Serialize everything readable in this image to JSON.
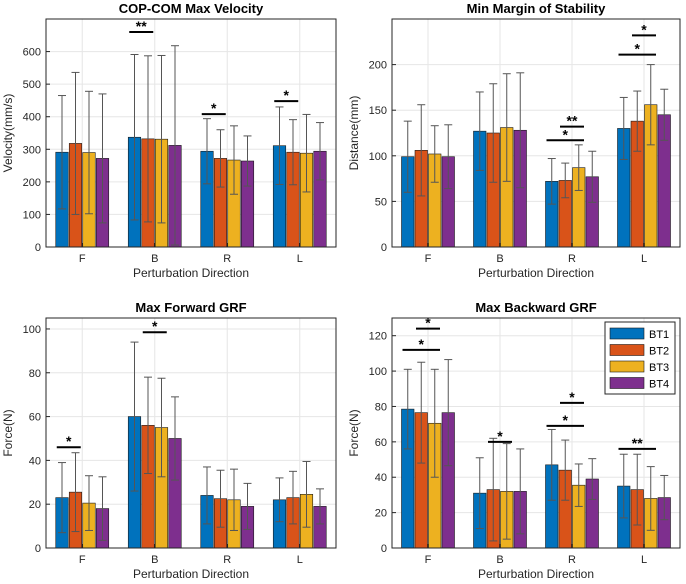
{
  "figure": "Perturbation response comparison across BT1-BT4",
  "chart_data": [
    {
      "type": "bar",
      "title": "COP-COM Max Velocity",
      "xlabel": "Perturbation Direction",
      "ylabel": "Velocity(mm/s)",
      "categories": [
        "F",
        "B",
        "R",
        "L"
      ],
      "ylim": [
        0,
        700
      ],
      "yticks": [
        0,
        100,
        200,
        300,
        400,
        500,
        600
      ],
      "grid": true,
      "series": [
        {
          "name": "BT1",
          "values": [
            291,
            337,
            294,
            311
          ],
          "error": [
            174,
            254,
            100,
            119
          ]
        },
        {
          "name": "BT2",
          "values": [
            318,
            332,
            272,
            291
          ],
          "error": [
            218,
            255,
            88,
            100
          ]
        },
        {
          "name": "BT3",
          "values": [
            290,
            331,
            267,
            288
          ],
          "error": [
            188,
            257,
            105,
            119
          ]
        },
        {
          "name": "BT4",
          "values": [
            272,
            312,
            264,
            294
          ],
          "error": [
            198,
            306,
            77,
            88
          ]
        }
      ],
      "annotations": [
        {
          "text": "**",
          "group": "B",
          "from": "BT1",
          "to": "BT2",
          "y": 660
        },
        {
          "text": "*",
          "group": "R",
          "from": "BT1",
          "to": "BT2",
          "y": 408
        },
        {
          "text": "*",
          "group": "L",
          "from": "BT1",
          "to": "BT2",
          "y": 448
        }
      ]
    },
    {
      "type": "bar",
      "title": "Min Margin of Stability",
      "xlabel": "Perturbation Direction",
      "ylabel": "Distance(mm)",
      "categories": [
        "F",
        "B",
        "R",
        "L"
      ],
      "ylim": [
        0,
        250
      ],
      "yticks": [
        0,
        50,
        100,
        150,
        200
      ],
      "grid": true,
      "series": [
        {
          "name": "BT1",
          "values": [
            99,
            127,
            72,
            130
          ],
          "error": [
            39,
            43,
            25,
            34
          ]
        },
        {
          "name": "BT2",
          "values": [
            106,
            125,
            73,
            138
          ],
          "error": [
            50,
            54,
            19,
            33
          ]
        },
        {
          "name": "BT3",
          "values": [
            102,
            131,
            87,
            156
          ],
          "error": [
            31,
            59,
            25,
            44
          ]
        },
        {
          "name": "BT4",
          "values": [
            99,
            128,
            77,
            145
          ],
          "error": [
            35,
            63,
            28,
            28
          ]
        }
      ],
      "annotations": [
        {
          "text": "*",
          "group": "R",
          "from": "BT1",
          "to": "BT3",
          "y": 117
        },
        {
          "text": "**",
          "group": "R",
          "from": "BT2",
          "to": "BT3",
          "y": 132
        },
        {
          "text": "*",
          "group": "L",
          "from": "BT1",
          "to": "BT3",
          "y": 211
        },
        {
          "text": "*",
          "group": "L",
          "from": "BT2",
          "to": "BT3",
          "y": 232
        }
      ]
    },
    {
      "type": "bar",
      "title": "Max Forward GRF",
      "xlabel": "Perturbation Direction",
      "ylabel": "Force(N)",
      "categories": [
        "F",
        "B",
        "R",
        "L"
      ],
      "ylim": [
        0,
        105
      ],
      "yticks": [
        0,
        20,
        40,
        60,
        80,
        100
      ],
      "grid": true,
      "series": [
        {
          "name": "BT1",
          "values": [
            23,
            60,
            24,
            22
          ],
          "error": [
            16,
            34,
            13,
            10
          ]
        },
        {
          "name": "BT2",
          "values": [
            25.5,
            56,
            22.5,
            23
          ],
          "error": [
            18,
            22,
            13,
            12
          ]
        },
        {
          "name": "BT3",
          "values": [
            20.5,
            55,
            22,
            24.5
          ],
          "error": [
            12.5,
            22.5,
            14,
            15
          ]
        },
        {
          "name": "BT4",
          "values": [
            18,
            50,
            19,
            19
          ],
          "error": [
            14.5,
            19,
            10.5,
            8
          ]
        }
      ],
      "annotations": [
        {
          "text": "*",
          "group": "F",
          "from": "BT1",
          "to": "BT2",
          "y": 46
        },
        {
          "text": "*",
          "group": "B",
          "from": "BT2",
          "to": "BT3",
          "y": 98.5
        }
      ]
    },
    {
      "type": "bar",
      "title": "Max Backward GRF",
      "xlabel": "Perturbation Direction",
      "ylabel": "Force(N)",
      "categories": [
        "F",
        "B",
        "R",
        "L"
      ],
      "ylim": [
        0,
        130
      ],
      "yticks": [
        0,
        20,
        40,
        60,
        80,
        100,
        120
      ],
      "grid": true,
      "legend": "top-right",
      "series": [
        {
          "name": "BT1",
          "values": [
            78.5,
            31,
            47,
            35
          ],
          "error": [
            22.5,
            20,
            20,
            18
          ]
        },
        {
          "name": "BT2",
          "values": [
            76.5,
            33,
            44,
            33
          ],
          "error": [
            28.5,
            29,
            17,
            20
          ]
        },
        {
          "name": "BT3",
          "values": [
            70.5,
            32,
            35.5,
            28
          ],
          "error": [
            30.5,
            27,
            12,
            18
          ]
        },
        {
          "name": "BT4",
          "values": [
            76.5,
            32,
            39,
            28.5
          ],
          "error": [
            30,
            24,
            11.5,
            12.5
          ]
        }
      ],
      "annotations": [
        {
          "text": "*",
          "group": "F",
          "from": "BT1",
          "to": "BT3",
          "y": 112
        },
        {
          "text": "*",
          "group": "F",
          "from": "BT2",
          "to": "BT3",
          "y": 124
        },
        {
          "text": "*",
          "group": "B",
          "from": "BT2",
          "to": "BT3",
          "y": 60
        },
        {
          "text": "*",
          "group": "R",
          "from": "BT1",
          "to": "BT3",
          "y": 69
        },
        {
          "text": "*",
          "group": "R",
          "from": "BT2",
          "to": "BT3",
          "y": 82
        },
        {
          "text": "**",
          "group": "L",
          "from": "BT1",
          "to": "BT3",
          "y": 56
        }
      ]
    }
  ],
  "colors": {
    "BT1": "#0072BD",
    "BT2": "#D95319",
    "BT3": "#EDB120",
    "BT4": "#7E2F8E",
    "axis": "#262626",
    "grid": "#E6E6E6",
    "errorbar": "#555555"
  }
}
